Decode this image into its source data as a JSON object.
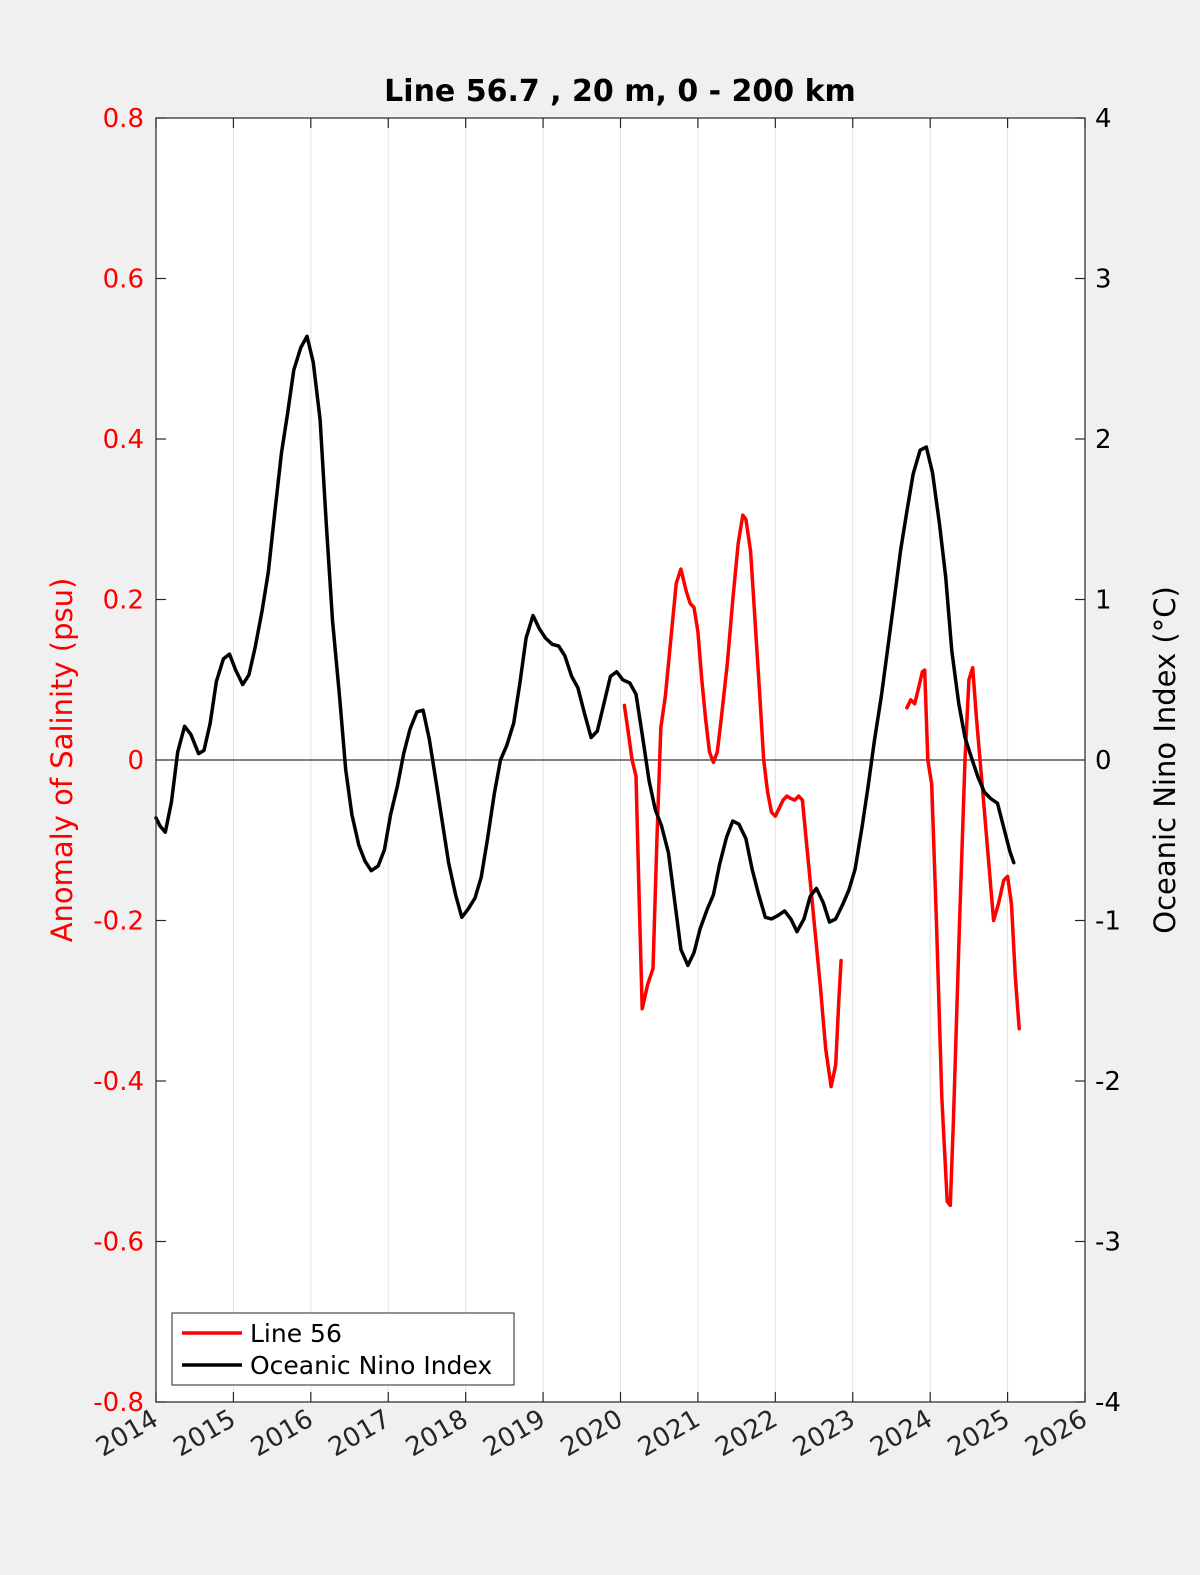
{
  "chart_data": {
    "type": "line",
    "title": "Line 56.7 , 20 m, 0 - 200 km",
    "xlabel": "",
    "x_ticks": [
      "2014",
      "2015",
      "2016",
      "2017",
      "2018",
      "2019",
      "2020",
      "2021",
      "2022",
      "2023",
      "2024",
      "2025",
      "2026"
    ],
    "xlim": [
      2014,
      2026
    ],
    "y_left": {
      "label": "Anomaly of Salinity (psu)",
      "ylim": [
        -0.8,
        0.8
      ],
      "ticks": [
        "-0.8",
        "-0.6",
        "-0.4",
        "-0.2",
        "0",
        "0.2",
        "0.4",
        "0.6",
        "0.8"
      ],
      "color": "#ff0000"
    },
    "y_right": {
      "label": "Oceanic Nino Index (°C)",
      "ylim": [
        -4,
        4
      ],
      "ticks": [
        "-4",
        "-3",
        "-2",
        "-1",
        "0",
        "1",
        "2",
        "3",
        "4"
      ],
      "color": "#000000"
    },
    "grid": "vertical",
    "legend_position": "bottom-left",
    "series": [
      {
        "name": "Line 56",
        "axis": "left",
        "color": "#ff0000",
        "segments": [
          [
            [
              2020.05,
              0.068
            ],
            [
              2020.1,
              0.035
            ],
            [
              2020.15,
              0.0
            ],
            [
              2020.2,
              -0.02
            ],
            [
              2020.24,
              -0.17
            ],
            [
              2020.28,
              -0.31
            ],
            [
              2020.35,
              -0.28
            ],
            [
              2020.42,
              -0.26
            ],
            [
              2020.47,
              -0.1
            ],
            [
              2020.52,
              0.04
            ],
            [
              2020.58,
              0.08
            ],
            [
              2020.65,
              0.15
            ],
            [
              2020.72,
              0.22
            ],
            [
              2020.78,
              0.238
            ],
            [
              2020.85,
              0.21
            ],
            [
              2020.9,
              0.195
            ],
            [
              2020.95,
              0.19
            ],
            [
              2021.0,
              0.16
            ],
            [
              2021.05,
              0.1
            ],
            [
              2021.1,
              0.05
            ],
            [
              2021.15,
              0.01
            ],
            [
              2021.2,
              -0.003
            ],
            [
              2021.25,
              0.01
            ],
            [
              2021.3,
              0.05
            ],
            [
              2021.38,
              0.12
            ],
            [
              2021.45,
              0.2
            ],
            [
              2021.52,
              0.27
            ],
            [
              2021.58,
              0.305
            ],
            [
              2021.62,
              0.3
            ],
            [
              2021.68,
              0.26
            ],
            [
              2021.72,
              0.2
            ],
            [
              2021.8,
              0.08
            ],
            [
              2021.85,
              0.0
            ],
            [
              2021.9,
              -0.04
            ],
            [
              2021.95,
              -0.065
            ],
            [
              2022.0,
              -0.07
            ],
            [
              2022.05,
              -0.06
            ],
            [
              2022.1,
              -0.05
            ],
            [
              2022.15,
              -0.045
            ],
            [
              2022.2,
              -0.048
            ],
            [
              2022.25,
              -0.05
            ],
            [
              2022.3,
              -0.045
            ],
            [
              2022.35,
              -0.05
            ],
            [
              2022.42,
              -0.12
            ],
            [
              2022.5,
              -0.2
            ],
            [
              2022.58,
              -0.28
            ],
            [
              2022.65,
              -0.36
            ],
            [
              2022.72,
              -0.407
            ],
            [
              2022.78,
              -0.38
            ],
            [
              2022.82,
              -0.3
            ],
            [
              2022.85,
              -0.25
            ]
          ],
          [
            [
              2023.7,
              0.065
            ],
            [
              2023.75,
              0.075
            ],
            [
              2023.8,
              0.07
            ],
            [
              2023.85,
              0.09
            ],
            [
              2023.9,
              0.11
            ],
            [
              2023.93,
              0.112
            ],
            [
              2023.97,
              0.0
            ],
            [
              2024.02,
              -0.03
            ],
            [
              2024.08,
              -0.2
            ],
            [
              2024.15,
              -0.42
            ],
            [
              2024.22,
              -0.55
            ],
            [
              2024.26,
              -0.555
            ],
            [
              2024.3,
              -0.45
            ],
            [
              2024.38,
              -0.2
            ],
            [
              2024.45,
              0.0
            ],
            [
              2024.5,
              0.1
            ],
            [
              2024.55,
              0.115
            ],
            [
              2024.6,
              0.05
            ],
            [
              2024.68,
              -0.04
            ],
            [
              2024.75,
              -0.12
            ],
            [
              2024.82,
              -0.2
            ],
            [
              2024.88,
              -0.18
            ],
            [
              2024.95,
              -0.15
            ],
            [
              2025.0,
              -0.145
            ],
            [
              2025.05,
              -0.18
            ],
            [
              2025.1,
              -0.27
            ],
            [
              2025.15,
              -0.335
            ]
          ]
        ]
      },
      {
        "name": "Oceanic Nino Index",
        "axis": "right",
        "color": "#000000",
        "points": [
          [
            2014.0,
            -0.36
          ],
          [
            2014.05,
            -0.41
          ],
          [
            2014.12,
            -0.45
          ],
          [
            2014.2,
            -0.26
          ],
          [
            2014.28,
            0.05
          ],
          [
            2014.37,
            0.21
          ],
          [
            2014.45,
            0.16
          ],
          [
            2014.55,
            0.04
          ],
          [
            2014.62,
            0.06
          ],
          [
            2014.7,
            0.23
          ],
          [
            2014.78,
            0.49
          ],
          [
            2014.87,
            0.63
          ],
          [
            2014.95,
            0.66
          ],
          [
            2015.03,
            0.56
          ],
          [
            2015.12,
            0.47
          ],
          [
            2015.2,
            0.53
          ],
          [
            2015.28,
            0.7
          ],
          [
            2015.37,
            0.93
          ],
          [
            2015.45,
            1.17
          ],
          [
            2015.53,
            1.52
          ],
          [
            2015.62,
            1.91
          ],
          [
            2015.7,
            2.16
          ],
          [
            2015.78,
            2.43
          ],
          [
            2015.87,
            2.57
          ],
          [
            2015.95,
            2.64
          ],
          [
            2016.03,
            2.48
          ],
          [
            2016.12,
            2.12
          ],
          [
            2016.2,
            1.47
          ],
          [
            2016.28,
            0.87
          ],
          [
            2016.37,
            0.4
          ],
          [
            2016.45,
            -0.06
          ],
          [
            2016.53,
            -0.34
          ],
          [
            2016.62,
            -0.53
          ],
          [
            2016.7,
            -0.63
          ],
          [
            2016.78,
            -0.69
          ],
          [
            2016.87,
            -0.66
          ],
          [
            2016.95,
            -0.56
          ],
          [
            2017.03,
            -0.34
          ],
          [
            2017.12,
            -0.16
          ],
          [
            2017.2,
            0.04
          ],
          [
            2017.28,
            0.19
          ],
          [
            2017.37,
            0.3
          ],
          [
            2017.45,
            0.31
          ],
          [
            2017.53,
            0.13
          ],
          [
            2017.62,
            -0.14
          ],
          [
            2017.7,
            -0.39
          ],
          [
            2017.78,
            -0.64
          ],
          [
            2017.87,
            -0.84
          ],
          [
            2017.95,
            -0.98
          ],
          [
            2018.03,
            -0.93
          ],
          [
            2018.12,
            -0.86
          ],
          [
            2018.2,
            -0.73
          ],
          [
            2018.28,
            -0.5
          ],
          [
            2018.37,
            -0.21
          ],
          [
            2018.45,
            0.0
          ],
          [
            2018.53,
            0.09
          ],
          [
            2018.62,
            0.23
          ],
          [
            2018.7,
            0.48
          ],
          [
            2018.78,
            0.76
          ],
          [
            2018.87,
            0.9
          ],
          [
            2018.95,
            0.82
          ],
          [
            2019.03,
            0.76
          ],
          [
            2019.12,
            0.72
          ],
          [
            2019.2,
            0.71
          ],
          [
            2019.28,
            0.65
          ],
          [
            2019.37,
            0.52
          ],
          [
            2019.45,
            0.45
          ],
          [
            2019.53,
            0.3
          ],
          [
            2019.62,
            0.14
          ],
          [
            2019.7,
            0.18
          ],
          [
            2019.78,
            0.34
          ],
          [
            2019.87,
            0.52
          ],
          [
            2019.95,
            0.55
          ],
          [
            2020.03,
            0.5
          ],
          [
            2020.12,
            0.48
          ],
          [
            2020.2,
            0.41
          ],
          [
            2020.28,
            0.16
          ],
          [
            2020.37,
            -0.13
          ],
          [
            2020.45,
            -0.31
          ],
          [
            2020.53,
            -0.41
          ],
          [
            2020.62,
            -0.58
          ],
          [
            2020.7,
            -0.88
          ],
          [
            2020.78,
            -1.18
          ],
          [
            2020.87,
            -1.28
          ],
          [
            2020.95,
            -1.2
          ],
          [
            2021.03,
            -1.05
          ],
          [
            2021.12,
            -0.93
          ],
          [
            2021.2,
            -0.84
          ],
          [
            2021.28,
            -0.65
          ],
          [
            2021.37,
            -0.48
          ],
          [
            2021.45,
            -0.38
          ],
          [
            2021.53,
            -0.4
          ],
          [
            2021.62,
            -0.49
          ],
          [
            2021.7,
            -0.68
          ],
          [
            2021.78,
            -0.83
          ],
          [
            2021.87,
            -0.98
          ],
          [
            2021.95,
            -0.99
          ],
          [
            2022.03,
            -0.97
          ],
          [
            2022.12,
            -0.94
          ],
          [
            2022.2,
            -0.99
          ],
          [
            2022.28,
            -1.07
          ],
          [
            2022.37,
            -0.99
          ],
          [
            2022.45,
            -0.85
          ],
          [
            2022.53,
            -0.8
          ],
          [
            2022.62,
            -0.89
          ],
          [
            2022.7,
            -1.01
          ],
          [
            2022.78,
            -0.99
          ],
          [
            2022.87,
            -0.9
          ],
          [
            2022.95,
            -0.81
          ],
          [
            2023.03,
            -0.68
          ],
          [
            2023.12,
            -0.42
          ],
          [
            2023.2,
            -0.16
          ],
          [
            2023.28,
            0.12
          ],
          [
            2023.37,
            0.4
          ],
          [
            2023.45,
            0.69
          ],
          [
            2023.53,
            0.98
          ],
          [
            2023.62,
            1.31
          ],
          [
            2023.7,
            1.55
          ],
          [
            2023.78,
            1.78
          ],
          [
            2023.87,
            1.93
          ],
          [
            2023.95,
            1.95
          ],
          [
            2024.03,
            1.79
          ],
          [
            2024.12,
            1.47
          ],
          [
            2024.2,
            1.14
          ],
          [
            2024.28,
            0.68
          ],
          [
            2024.37,
            0.35
          ],
          [
            2024.45,
            0.14
          ],
          [
            2024.53,
            0.02
          ],
          [
            2024.62,
            -0.11
          ],
          [
            2024.7,
            -0.2
          ],
          [
            2024.78,
            -0.24
          ],
          [
            2024.87,
            -0.27
          ],
          [
            2024.95,
            -0.42
          ],
          [
            2025.03,
            -0.57
          ],
          [
            2025.08,
            -0.64
          ]
        ]
      }
    ]
  }
}
